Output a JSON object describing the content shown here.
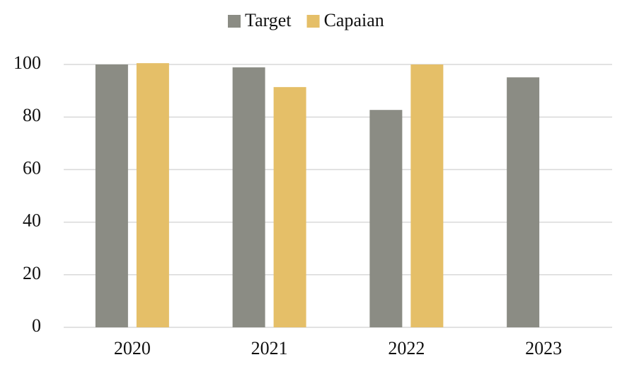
{
  "chart_data": {
    "type": "bar",
    "categories": [
      "2020",
      "2021",
      "2022",
      "2023"
    ],
    "series": [
      {
        "name": "Target",
        "color": "#8b8c84",
        "values": [
          100,
          98.9,
          82.7,
          95.1
        ]
      },
      {
        "name": "Capaian",
        "color": "#e5bf68",
        "values": [
          100.5,
          91.4,
          100,
          null
        ]
      }
    ],
    "ylim": [
      0,
      100
    ],
    "yticks": [
      0,
      20,
      40,
      60,
      80,
      100
    ],
    "grid": true,
    "legend": "top"
  }
}
